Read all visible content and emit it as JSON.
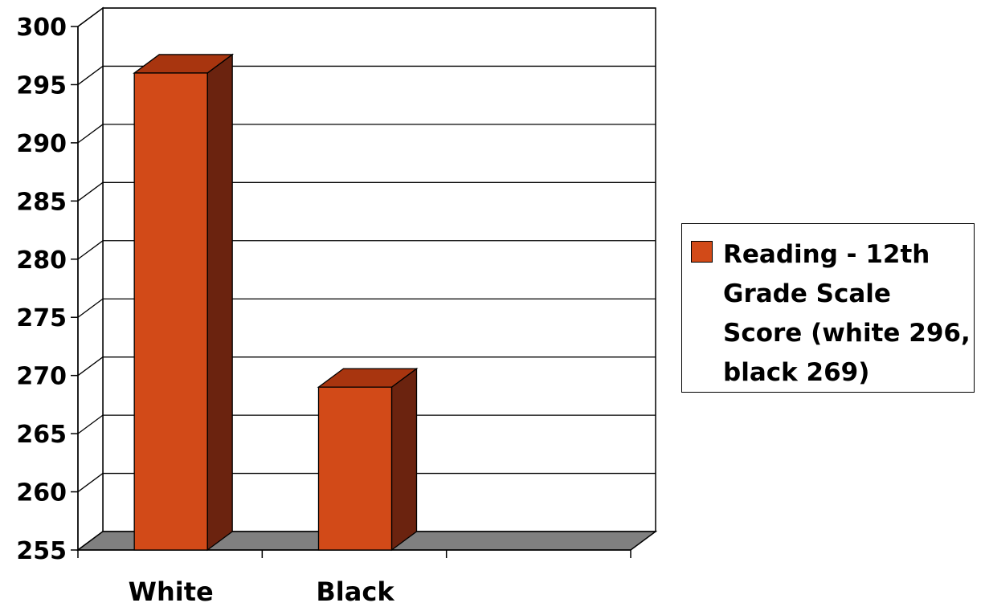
{
  "chart_data": {
    "type": "bar",
    "style": "3d-column",
    "categories": [
      "White",
      "Black"
    ],
    "series": [
      {
        "name": "Reading - 12th Grade Scale Score (white 296, black 269)",
        "values": [
          296,
          269
        ],
        "color": "#d24a18"
      }
    ],
    "ylim": [
      255,
      300
    ],
    "yticks": [
      "255",
      "260",
      "265",
      "270",
      "275",
      "280",
      "285",
      "290",
      "295",
      "300"
    ],
    "grid": true,
    "legend": "right"
  },
  "colors": {
    "bar_front": "#d24a18",
    "bar_side": "#6b230f",
    "bar_top": "#a8350f",
    "floor": "#808080",
    "gridline": "#000000"
  }
}
